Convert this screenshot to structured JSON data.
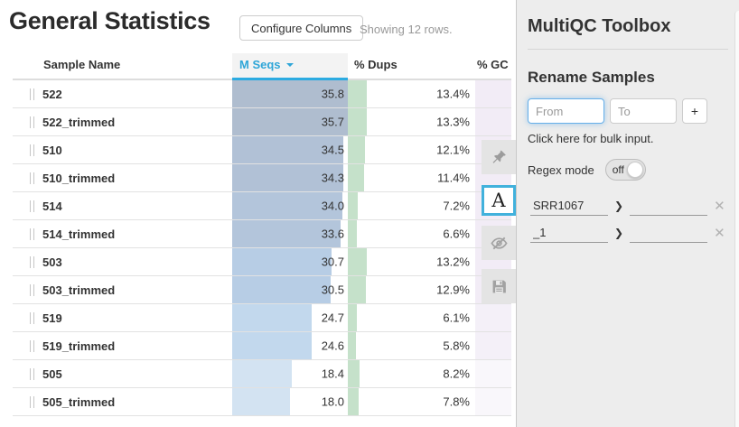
{
  "page": {
    "title": "General Statistics",
    "configure_columns_label": "Configure Columns",
    "showing_text": "Showing 12 rows."
  },
  "table": {
    "columns": {
      "sample": "Sample Name",
      "mseqs": "M Seqs",
      "dups": "% Dups",
      "gc": "% GC"
    },
    "sorted_column": "M Seqs",
    "sort_direction": "descending",
    "max_mseqs": 35.8,
    "max_dups_pct": 13.4,
    "dups_bar_color": "#c5e1ca",
    "rows": [
      {
        "sample": "522",
        "mseqs": "35.8",
        "mseqs_value": 35.8,
        "dups": "13.4%",
        "dups_value": 13.4,
        "bar_color": "#afbdcf",
        "gc_color": "#f2ecf6"
      },
      {
        "sample": "522_trimmed",
        "mseqs": "35.7",
        "mseqs_value": 35.7,
        "dups": "13.3%",
        "dups_value": 13.3,
        "bar_color": "#afbdcf",
        "gc_color": "#f2ecf6"
      },
      {
        "sample": "510",
        "mseqs": "34.5",
        "mseqs_value": 34.5,
        "dups": "12.1%",
        "dups_value": 12.1,
        "bar_color": "#b1c1d6",
        "gc_color": "#f2ecf6"
      },
      {
        "sample": "510_trimmed",
        "mseqs": "34.3",
        "mseqs_value": 34.3,
        "dups": "11.4%",
        "dups_value": 11.4,
        "bar_color": "#b1c1d6",
        "gc_color": "#f2ecf6"
      },
      {
        "sample": "514",
        "mseqs": "34.0",
        "mseqs_value": 34.0,
        "dups": "7.2%",
        "dups_value": 7.2,
        "bar_color": "#b3c5db",
        "gc_color": "#f2ecf6"
      },
      {
        "sample": "514_trimmed",
        "mseqs": "33.6",
        "mseqs_value": 33.6,
        "dups": "6.6%",
        "dups_value": 6.6,
        "bar_color": "#b3c5db",
        "gc_color": "#f2ecf6"
      },
      {
        "sample": "503",
        "mseqs": "30.7",
        "mseqs_value": 30.7,
        "dups": "13.2%",
        "dups_value": 13.2,
        "bar_color": "#b7cde5",
        "gc_color": "#f2ecf6"
      },
      {
        "sample": "503_trimmed",
        "mseqs": "30.5",
        "mseqs_value": 30.5,
        "dups": "12.9%",
        "dups_value": 12.9,
        "bar_color": "#b7cde5",
        "gc_color": "#f2ecf6"
      },
      {
        "sample": "519",
        "mseqs": "24.7",
        "mseqs_value": 24.7,
        "dups": "6.1%",
        "dups_value": 6.1,
        "bar_color": "#c2d8ed",
        "gc_color": "#f4f0f8"
      },
      {
        "sample": "519_trimmed",
        "mseqs": "24.6",
        "mseqs_value": 24.6,
        "dups": "5.8%",
        "dups_value": 5.8,
        "bar_color": "#c2d8ed",
        "gc_color": "#f4f0f8"
      },
      {
        "sample": "505",
        "mseqs": "18.4",
        "mseqs_value": 18.4,
        "dups": "8.2%",
        "dups_value": 8.2,
        "bar_color": "#d3e3f2",
        "gc_color": "#f9f7fb"
      },
      {
        "sample": "505_trimmed",
        "mseqs": "18.0",
        "mseqs_value": 18.0,
        "dups": "7.8%",
        "dups_value": 7.8,
        "bar_color": "#d3e3f2",
        "gc_color": "#f9f7fb"
      }
    ]
  },
  "toolbox": {
    "title": "MultiQC Toolbox",
    "section_title": "Rename Samples",
    "from_placeholder": "From",
    "to_placeholder": "To",
    "add_button_label": "+",
    "bulk_input_text": "Click here for bulk input.",
    "regex_label": "Regex mode",
    "regex_state": "off",
    "rename_arrow": "❯",
    "delete_label": "✕",
    "renames": [
      {
        "from": "SRR1067",
        "to": ""
      },
      {
        "from": "_1",
        "to": ""
      }
    ],
    "tabs": {
      "rename_label": "A",
      "active_tab": "rename",
      "icons": [
        "pin-icon",
        "letter-a-icon",
        "eye-slash-icon",
        "save-icon"
      ]
    },
    "colors": {
      "accent": "#41b1dc",
      "header_sort": "#2cabe1"
    }
  }
}
